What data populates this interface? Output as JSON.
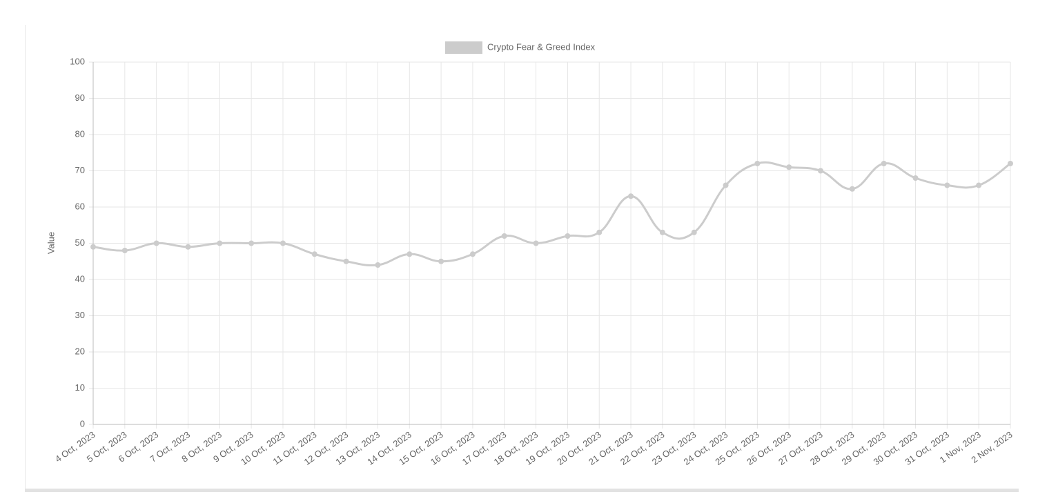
{
  "chart_data": {
    "type": "line",
    "y_label": "Value",
    "categories": [
      "4 Oct, 2023",
      "5 Oct, 2023",
      "6 Oct, 2023",
      "7 Oct, 2023",
      "8 Oct, 2023",
      "9 Oct, 2023",
      "10 Oct, 2023",
      "11 Oct, 2023",
      "12 Oct, 2023",
      "13 Oct, 2023",
      "14 Oct, 2023",
      "15 Oct, 2023",
      "16 Oct, 2023",
      "17 Oct, 2023",
      "18 Oct, 2023",
      "19 Oct, 2023",
      "20 Oct, 2023",
      "21 Oct, 2023",
      "22 Oct, 2023",
      "23 Oct, 2023",
      "24 Oct, 2023",
      "25 Oct, 2023",
      "26 Oct, 2023",
      "27 Oct, 2023",
      "28 Oct, 2023",
      "29 Oct, 2023",
      "30 Oct, 2023",
      "31 Oct, 2023",
      "1 Nov, 2023",
      "2 Nov, 2023"
    ],
    "series": [
      {
        "name": "Crypto Fear & Greed Index",
        "color": "#cccccc",
        "values": [
          49,
          48,
          50,
          49,
          50,
          50,
          50,
          47,
          45,
          44,
          47,
          45,
          47,
          52,
          50,
          52,
          53,
          63,
          53,
          53,
          66,
          72,
          71,
          70,
          65,
          72,
          68,
          66,
          66,
          72
        ]
      }
    ],
    "ylim": [
      0,
      100
    ],
    "yticks": [
      0,
      10,
      20,
      30,
      40,
      50,
      60,
      70,
      80,
      90,
      100
    ],
    "grid": true,
    "legend": "top"
  }
}
